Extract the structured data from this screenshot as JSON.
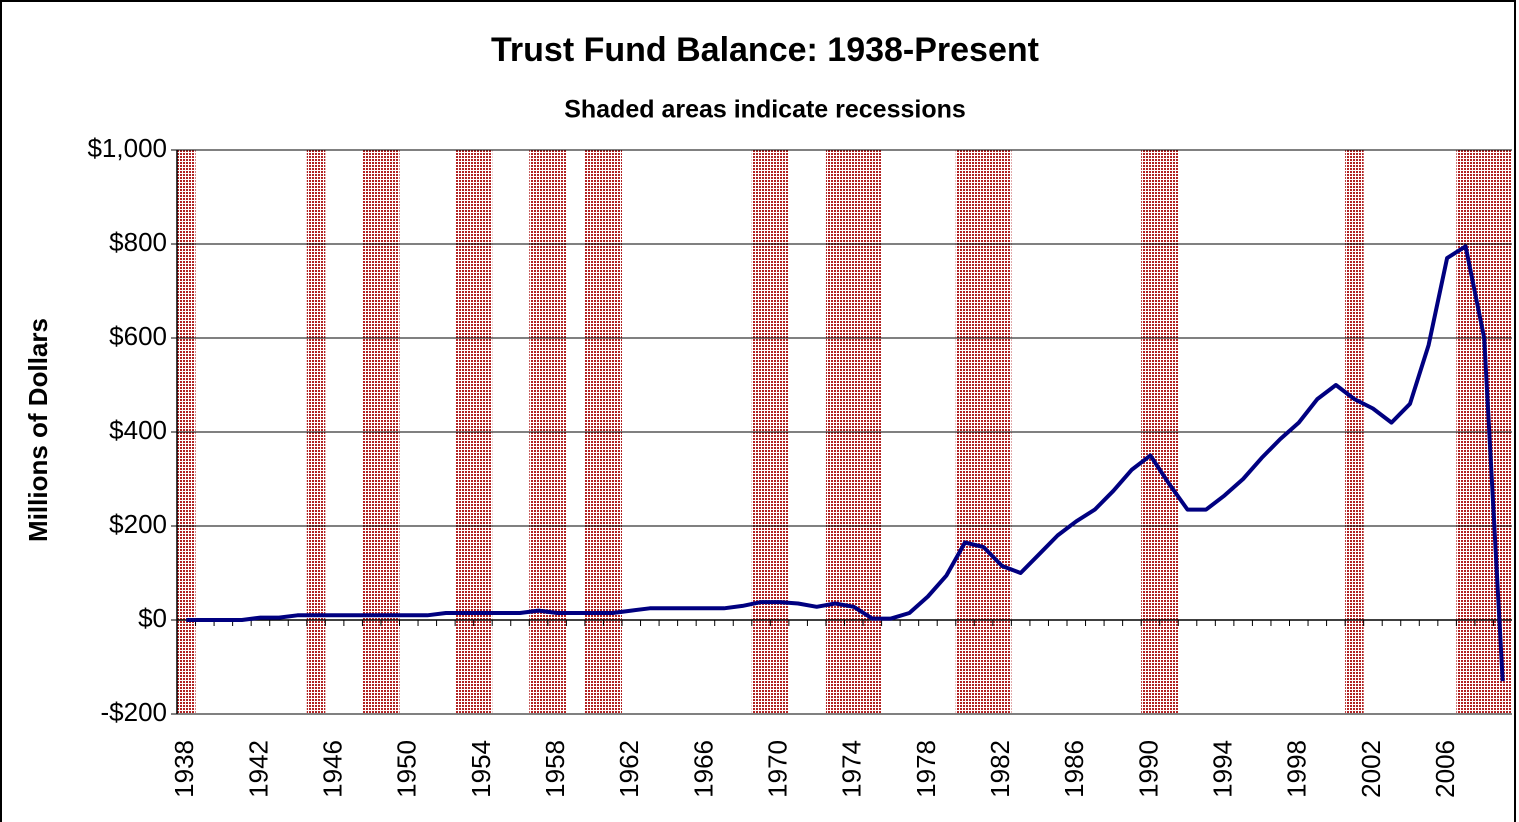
{
  "chart_data": {
    "type": "line",
    "title": "Trust Fund Balance: 1938-Present",
    "subtitle": "Shaded areas indicate recessions",
    "y_label": "Millions of Dollars",
    "categories": [
      "1938",
      null,
      null,
      null,
      "1942",
      null,
      null,
      null,
      "1946",
      null,
      null,
      null,
      "1950",
      null,
      null,
      null,
      "1954",
      null,
      null,
      null,
      "1958",
      null,
      null,
      null,
      "1962",
      null,
      null,
      null,
      "1966",
      null,
      null,
      null,
      "1970",
      null,
      null,
      null,
      "1974",
      null,
      null,
      null,
      "1978",
      null,
      null,
      null,
      "1982",
      null,
      null,
      null,
      "1986",
      null,
      null,
      null,
      "1990",
      null,
      null,
      null,
      "1994",
      null,
      null,
      null,
      "1998",
      null,
      null,
      null,
      "2002",
      null,
      null,
      null,
      "2006",
      null,
      null,
      null
    ],
    "series": [
      {
        "name": "Trust Fund Balance",
        "color": "#000080",
        "values": [
          0,
          0,
          0,
          0,
          5,
          5,
          10,
          10,
          10,
          10,
          10,
          10,
          10,
          10,
          15,
          15,
          15,
          15,
          15,
          20,
          15,
          15,
          15,
          15,
          20,
          25,
          25,
          25,
          25,
          25,
          30,
          38,
          38,
          35,
          28,
          35,
          28,
          3,
          3,
          15,
          50,
          95,
          165,
          155,
          115,
          100,
          140,
          180,
          210,
          235,
          275,
          320,
          350,
          290,
          235,
          235,
          265,
          300,
          345,
          385,
          420,
          470,
          500,
          470,
          450,
          420,
          460,
          585,
          770,
          795,
          600,
          -130
        ]
      }
    ],
    "recessions": [
      [
        1938,
        1938
      ],
      [
        1945,
        1945
      ],
      [
        1948,
        1949
      ],
      [
        1953,
        1954
      ],
      [
        1957,
        1958
      ],
      [
        1960,
        1961
      ],
      [
        1969,
        1970
      ],
      [
        1973,
        1975
      ],
      [
        1980,
        1982
      ],
      [
        1990,
        1991
      ],
      [
        2001,
        2001
      ],
      [
        2007,
        2009
      ]
    ],
    "recession_color": "#b22222",
    "ylim": [
      -200,
      1000
    ],
    "yticks": [
      {
        "value": -200,
        "label": "-$200"
      },
      {
        "value": 0,
        "label": "$0"
      },
      {
        "value": 200,
        "label": "$200"
      },
      {
        "value": 400,
        "label": "$400"
      },
      {
        "value": 600,
        "label": "$600"
      },
      {
        "value": 800,
        "label": "$800"
      },
      {
        "value": 1000,
        "label": "$1,000"
      }
    ],
    "grid": true
  }
}
